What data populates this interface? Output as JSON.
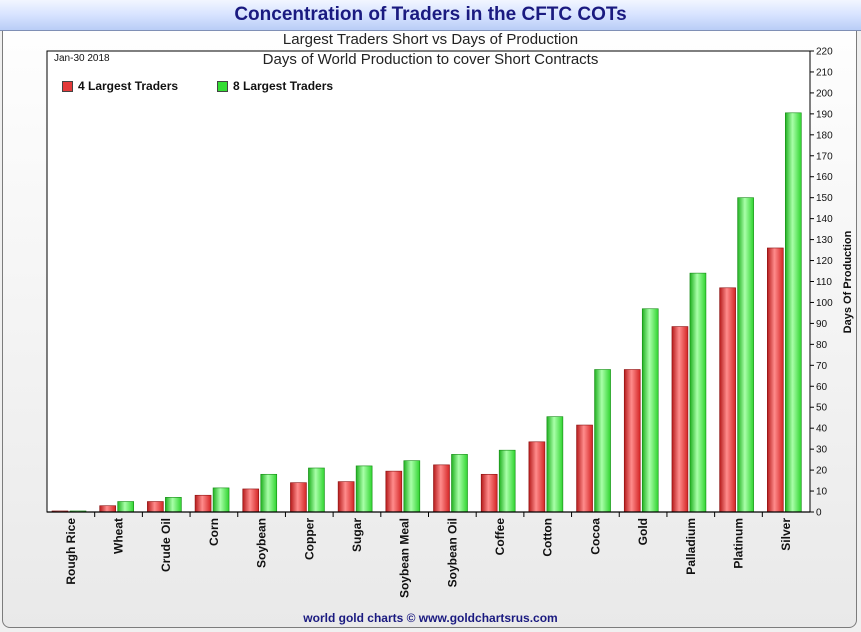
{
  "colors": {
    "four_largest": "#e33a3a",
    "eight_largest": "#33dd33",
    "title": "#1a1a80"
  },
  "chart_data": {
    "type": "bar",
    "title": "Concentration of Traders in the CFTC COTs",
    "subtitle_1": "Largest Traders Short vs Days of Production",
    "subtitle_2": "Days of World Production to cover Short Contracts",
    "date_label": "Jan-30  2018",
    "ylabel": "Days Of Production",
    "ylim": [
      0,
      220
    ],
    "ytick_step": 10,
    "y_axis_side": "right",
    "legend_position": "top-left",
    "categories": [
      "Rough Rice",
      "Wheat",
      "Crude Oil",
      "Corn",
      "Soybean",
      "Copper",
      "Sugar",
      "Soybean Meal",
      "Soybean Oil",
      "Coffee",
      "Cotton",
      "Cocoa",
      "Gold",
      "Palladium",
      "Platinum",
      "Silver"
    ],
    "series": [
      {
        "name": "4 Largest Traders",
        "values": [
          0.5,
          3,
          5,
          8,
          11,
          14,
          14.5,
          19.5,
          22.5,
          18,
          33.5,
          41.5,
          68,
          88.5,
          107,
          126
        ]
      },
      {
        "name": "8 Largest Traders",
        "values": [
          0.5,
          5,
          7,
          11.5,
          18,
          21,
          22,
          24.5,
          27.5,
          29.5,
          45.5,
          68,
          97,
          114,
          150,
          190.5
        ]
      }
    ],
    "footer": "world gold charts © www.goldchartsrus.com"
  }
}
